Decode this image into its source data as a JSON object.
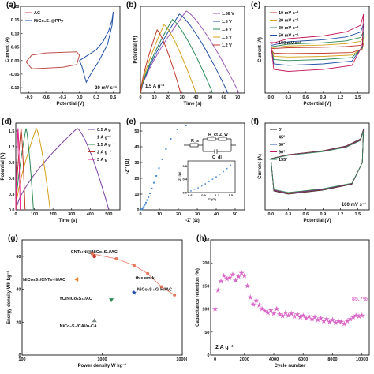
{
  "panels": {
    "a": {
      "label": "(a)"
    },
    "b": {
      "label": "(b)"
    },
    "c": {
      "label": "(c)"
    },
    "d": {
      "label": "(d)"
    },
    "e": {
      "label": "(e)"
    },
    "f": {
      "label": "(f)"
    },
    "g": {
      "label": "(g)"
    },
    "h": {
      "label": "(h)"
    }
  },
  "chart_data": [
    {
      "id": "a",
      "type": "line",
      "xlabel": "Potential (V)",
      "ylabel": "Current (A)",
      "xlim": [
        -1.05,
        0.72
      ],
      "ylim": [
        -0.12,
        0.2
      ],
      "xticks": [
        "-0.9",
        "-0.6",
        "-0.3",
        "0.0",
        "0.3",
        "0.6"
      ],
      "xtick_values": [
        -0.9,
        -0.6,
        -0.3,
        0.0,
        0.3,
        0.6
      ],
      "yticks": [
        "-0.10",
        "-0.05",
        "0.00",
        "0.05",
        "0.10",
        "0.15",
        "0.20"
      ],
      "ytick_values": [
        -0.1,
        -0.05,
        0.0,
        0.05,
        0.1,
        0.15,
        0.2
      ],
      "annotation": "20 mV s⁻¹",
      "series": [
        {
          "name": "AC",
          "color": "#c0504d"
        },
        {
          "name": "NiCo₂S₄@PPy",
          "color": "#1f4fa8"
        }
      ]
    },
    {
      "id": "b",
      "type": "line",
      "xlabel": "Time (s)",
      "ylabel": "Potential (V)",
      "xlim": [
        0,
        75
      ],
      "xticks": [
        "0",
        "10",
        "20",
        "30",
        "40",
        "50",
        "60",
        "70"
      ],
      "xtick_values": [
        0,
        10,
        20,
        30,
        40,
        50,
        60,
        70
      ],
      "annotation": "1.5 A g⁻¹",
      "series": [
        {
          "name": "1.56 V",
          "vmax": 1.56,
          "charge_end": 33,
          "discharge_end": 71,
          "color": "#9b59b6"
        },
        {
          "name": "1.5 V",
          "vmax": 1.5,
          "charge_end": 28,
          "discharge_end": 63,
          "color": "#1f4fa8"
        },
        {
          "name": "1.4 V",
          "vmax": 1.4,
          "charge_end": 23,
          "discharge_end": 52,
          "color": "#2e8b57"
        },
        {
          "name": "1.3 V",
          "vmax": 1.3,
          "charge_end": 17,
          "discharge_end": 40,
          "color": "#d4a017"
        },
        {
          "name": "1.2 V",
          "vmax": 1.2,
          "charge_end": 12,
          "discharge_end": 29,
          "color": "#c0392b"
        }
      ]
    },
    {
      "id": "c",
      "type": "line",
      "xlabel": "Potential (V)",
      "ylabel": "Current (A)",
      "xlim": [
        -0.1,
        1.7
      ],
      "xticks": [
        "0.0",
        "0.3",
        "0.6",
        "0.9",
        "1.2",
        "1.5"
      ],
      "xtick_values": [
        0,
        0.3,
        0.6,
        0.9,
        1.2,
        1.5
      ],
      "series": [
        {
          "name": "10 mV s⁻¹",
          "scale": 0.18,
          "color": "#c0392b"
        },
        {
          "name": "20 mV s⁻¹",
          "scale": 0.34,
          "color": "#d4a017"
        },
        {
          "name": "30 mV s⁻¹",
          "scale": 0.5,
          "color": "#2e8b57"
        },
        {
          "name": "50 mV s⁻¹",
          "scale": 0.72,
          "color": "#1f4fa8"
        },
        {
          "name": "100 mV s⁻¹",
          "scale": 1.0,
          "color": "#c2185b"
        }
      ]
    },
    {
      "id": "d",
      "type": "line",
      "xlabel": "Time (s)",
      "ylabel": "Potential (V)",
      "xlim": [
        0,
        560
      ],
      "ylim": [
        0,
        1.65
      ],
      "xticks": [
        "0",
        "100",
        "200",
        "300",
        "400",
        "500"
      ],
      "xtick_values": [
        0,
        100,
        200,
        300,
        400,
        500
      ],
      "yticks": [
        "0.0",
        "0.3",
        "0.6",
        "0.9",
        "1.2",
        "1.5"
      ],
      "ytick_values": [
        0,
        0.3,
        0.6,
        0.9,
        1.2,
        1.5
      ],
      "series": [
        {
          "name": "0.5 A g⁻¹",
          "charge_end": 330,
          "discharge_end": 500,
          "color": "#7b3fa0"
        },
        {
          "name": "1 A g⁻¹",
          "charge_end": 110,
          "discharge_end": 185,
          "color": "#d4a017"
        },
        {
          "name": "1.5 A g⁻¹",
          "charge_end": 55,
          "discharge_end": 95,
          "color": "#2e8b57"
        },
        {
          "name": "2 A g⁻¹",
          "charge_end": 28,
          "discharge_end": 50,
          "color": "#c0392b"
        },
        {
          "name": "3 A g⁻¹",
          "charge_end": 12,
          "discharge_end": 24,
          "color": "#e91e8c"
        }
      ]
    },
    {
      "id": "e",
      "type": "scatter",
      "xlabel": "-Z' (Ω)",
      "ylabel": "-Z'' (Ω)",
      "xlim": [
        0,
        55
      ],
      "ylim": [
        0,
        55
      ],
      "xticks": [
        "0",
        "10",
        "20",
        "30",
        "40",
        "50"
      ],
      "xtick_values": [
        0,
        10,
        20,
        30,
        40,
        50
      ],
      "yticks": [
        "0",
        "10",
        "20",
        "30",
        "40",
        "50"
      ],
      "ytick_values": [
        0,
        10,
        20,
        30,
        40,
        50
      ],
      "circuit_labels": [
        "R_s",
        "R_ct",
        "Z_w",
        "C_dl"
      ],
      "inset": {
        "xlabel": "-Z' (Ω)",
        "ylabel": "-Z'' (Ω)",
        "xticks": [
          "0.6",
          "0.9",
          "1.2",
          "1.5"
        ],
        "xtick_values": [
          0.6,
          0.9,
          1.2,
          1.5
        ],
        "yticks": [
          "0.0",
          "0.4",
          "0.8"
        ],
        "ytick_values": [
          0,
          0.4,
          0.8
        ]
      },
      "points": [
        [
          0.5,
          0.3
        ],
        [
          0.9,
          0.6
        ],
        [
          1.3,
          1.2
        ],
        [
          1.8,
          2.1
        ],
        [
          2.3,
          3.2
        ],
        [
          2.9,
          4.6
        ],
        [
          3.5,
          6.2
        ],
        [
          4.2,
          8.1
        ],
        [
          5.0,
          10.5
        ],
        [
          6.0,
          13.6
        ],
        [
          7.1,
          17.2
        ],
        [
          8.4,
          21.5
        ],
        [
          9.8,
          26.4
        ],
        [
          11.5,
          32.0
        ],
        [
          13.5,
          38.5
        ],
        [
          16.0,
          45.0
        ],
        [
          19.5,
          51.0
        ],
        [
          24.0,
          53.5
        ]
      ],
      "inset_points": [
        [
          0.62,
          0.05
        ],
        [
          0.7,
          0.1
        ],
        [
          0.78,
          0.14
        ],
        [
          0.86,
          0.2
        ],
        [
          0.94,
          0.26
        ],
        [
          1.02,
          0.33
        ],
        [
          1.1,
          0.4
        ],
        [
          1.18,
          0.47
        ],
        [
          1.26,
          0.55
        ],
        [
          1.34,
          0.63
        ],
        [
          1.42,
          0.72
        ],
        [
          1.5,
          0.82
        ]
      ]
    },
    {
      "id": "f",
      "type": "line",
      "xlabel": "Potential (V)",
      "ylabel": "Current (A)",
      "xlim": [
        -0.1,
        1.7
      ],
      "xticks": [
        "0.0",
        "0.3",
        "0.6",
        "0.9",
        "1.2",
        "1.5"
      ],
      "xtick_values": [
        0,
        0.3,
        0.6,
        0.9,
        1.2,
        1.5
      ],
      "annotation": "100 mV s⁻¹",
      "series": [
        {
          "name": "0°",
          "color": "#1a1a1a"
        },
        {
          "name": "45°",
          "color": "#c0392b"
        },
        {
          "name": "60°",
          "color": "#1f4fa8"
        },
        {
          "name": "90°",
          "color": "#c2185b"
        },
        {
          "name": "135°",
          "color": "#2e8b57"
        }
      ]
    },
    {
      "id": "g",
      "type": "scatter",
      "xlabel": "Power density  W kg⁻¹",
      "ylabel": "Energy density  Wh kg⁻¹",
      "xlim": [
        100,
        10000
      ],
      "ylim": [
        0,
        70
      ],
      "xscale": "log",
      "xticks": [
        "100",
        "1000",
        "10000"
      ],
      "xtick_values": [
        100,
        1000,
        10000
      ],
      "yticks": [
        "0",
        "20",
        "40",
        "60"
      ],
      "ytick_values": [
        0,
        20,
        40,
        60
      ],
      "this_work_label": "this work",
      "this_work": [
        [
          750,
          61.5
        ],
        [
          1500,
          58.5
        ],
        [
          2500,
          54.5
        ],
        [
          3700,
          49.5
        ],
        [
          5500,
          41.5
        ],
        [
          8000,
          36.5
        ]
      ],
      "references": [
        {
          "name": "CNTs:Ni@NiCo₂S₄//AC",
          "x": 800,
          "y": 60,
          "color": "#c0392b",
          "marker": "circle"
        },
        {
          "name": "NiCo₂S₄/CNTs-H//AC",
          "x": 480,
          "y": 46,
          "color": "#e67e22",
          "marker": "tri-left"
        },
        {
          "name": "NiCo₂S₄/G-H//AC",
          "x": 2500,
          "y": 38,
          "color": "#1f4fa8",
          "marker": "star"
        },
        {
          "name": "YC/NiCo₂S₄//AC",
          "x": 1300,
          "y": 33.5,
          "color": "#2e8b57",
          "marker": "tri-down"
        },
        {
          "name": "NiCo₂S₄/CA//u-CA",
          "x": 800,
          "y": 21,
          "color": "#7f8c8d",
          "marker": "tri-up"
        }
      ]
    },
    {
      "id": "h",
      "type": "scatter",
      "xlabel": "Cycle number",
      "ylabel": "Capacitance retention (%)",
      "xlim": [
        -300,
        10500
      ],
      "ylim": [
        0,
        250
      ],
      "xticks": [
        "0",
        "2000",
        "4000",
        "6000",
        "8000",
        "10000"
      ],
      "xtick_values": [
        0,
        2000,
        4000,
        6000,
        8000,
        10000
      ],
      "yticks": [
        "0",
        "50",
        "100",
        "150",
        "200",
        "250"
      ],
      "ytick_values": [
        0,
        50,
        100,
        150,
        200,
        250
      ],
      "annotation": "2 A g⁻¹",
      "final_label": "85.7%",
      "color": "#d966c8",
      "points": [
        [
          0,
          100
        ],
        [
          200,
          140
        ],
        [
          400,
          160
        ],
        [
          600,
          172
        ],
        [
          800,
          165
        ],
        [
          1000,
          168
        ],
        [
          1200,
          175
        ],
        [
          1400,
          162
        ],
        [
          1600,
          170
        ],
        [
          1800,
          178
        ],
        [
          2000,
          172
        ],
        [
          2200,
          150
        ],
        [
          2400,
          125
        ],
        [
          2600,
          110
        ],
        [
          2800,
          118
        ],
        [
          3000,
          108
        ],
        [
          3200,
          100
        ],
        [
          3400,
          95
        ],
        [
          3600,
          92
        ],
        [
          3800,
          98
        ],
        [
          4000,
          90
        ],
        [
          4200,
          100
        ],
        [
          4400,
          88
        ],
        [
          4600,
          85
        ],
        [
          4800,
          92
        ],
        [
          5000,
          86
        ],
        [
          5200,
          90
        ],
        [
          5400,
          84
        ],
        [
          5600,
          88
        ],
        [
          5800,
          82
        ],
        [
          6000,
          86
        ],
        [
          6200,
          80
        ],
        [
          6400,
          84
        ],
        [
          6600,
          78
        ],
        [
          6800,
          82
        ],
        [
          7000,
          76
        ],
        [
          7200,
          80
        ],
        [
          7400,
          74
        ],
        [
          7600,
          78
        ],
        [
          7800,
          72
        ],
        [
          8000,
          76
        ],
        [
          8200,
          70
        ],
        [
          8400,
          74
        ],
        [
          8600,
          72
        ],
        [
          8800,
          68
        ],
        [
          9000,
          74
        ],
        [
          9200,
          78
        ],
        [
          9400,
          82
        ],
        [
          9600,
          86
        ],
        [
          9800,
          84
        ],
        [
          10000,
          85.7
        ]
      ]
    }
  ]
}
